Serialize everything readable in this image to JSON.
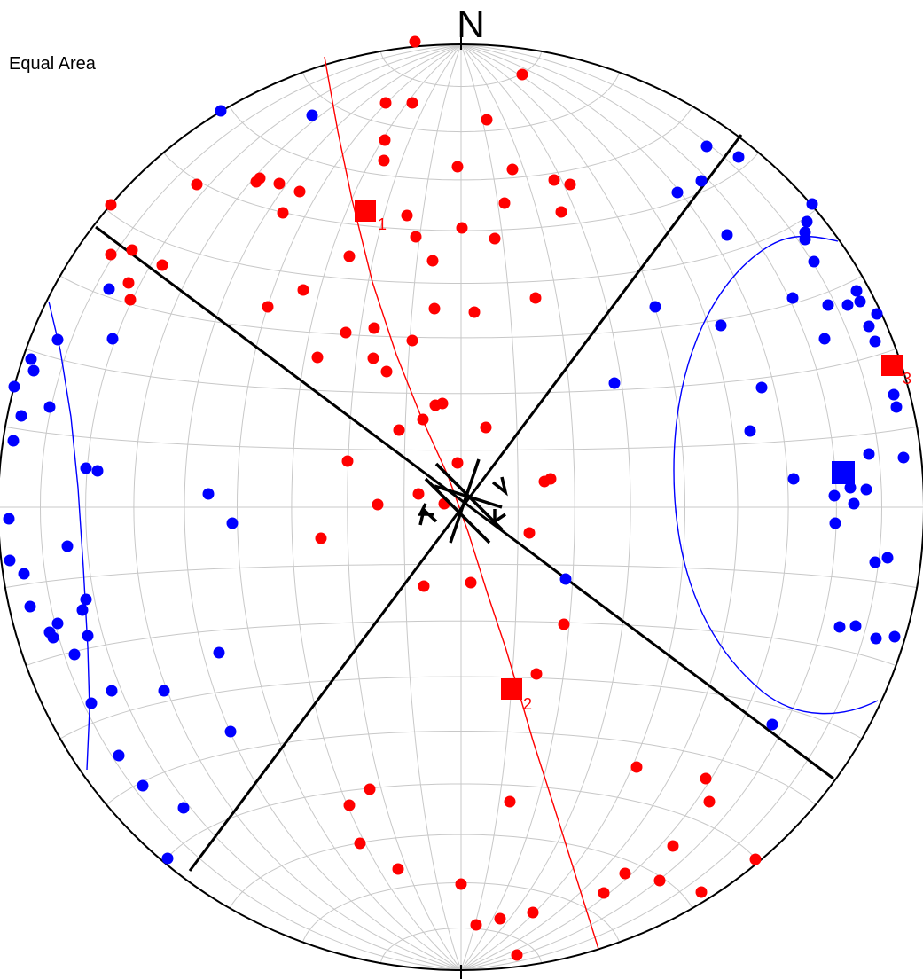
{
  "projection_label": "Equal Area",
  "north_label": "N",
  "colors": {
    "red": "#ff0000",
    "blue": "#0000ff",
    "black": "#000000",
    "grid": "#c8c8c8"
  },
  "principal_axes": [
    {
      "label": "1"
    },
    {
      "label": "2"
    },
    {
      "label": "3"
    }
  ]
}
